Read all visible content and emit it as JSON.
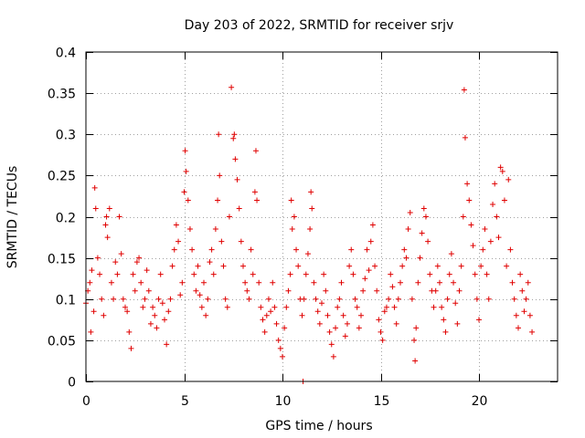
{
  "chart_data": {
    "type": "scatter",
    "title": "Day 203 of 2022, SRMTID for receiver srjv",
    "xlabel": "GPS time / hours",
    "ylabel": "SRMTID / TECUs",
    "xlim": [
      0,
      24
    ],
    "ylim": [
      0,
      0.4
    ],
    "x_ticks": [
      0,
      5,
      10,
      15,
      20
    ],
    "x_tick_labels": [
      "0",
      "5",
      "10",
      "15",
      "20"
    ],
    "y_ticks": [
      0,
      0.05,
      0.1,
      0.15,
      0.2,
      0.25,
      0.3,
      0.35,
      0.4
    ],
    "y_tick_labels": [
      "0",
      "0.05",
      "0.1",
      "0.15",
      "0.2",
      "0.25",
      "0.3",
      "0.35",
      "0.4"
    ],
    "grid": true,
    "marker": "+",
    "color": "#e00000",
    "series": [
      {
        "name": "srjv",
        "points": [
          [
            0.0,
            0.095
          ],
          [
            0.1,
            0.11
          ],
          [
            0.2,
            0.12
          ],
          [
            0.25,
            0.06
          ],
          [
            0.3,
            0.135
          ],
          [
            0.4,
            0.085
          ],
          [
            0.45,
            0.235
          ],
          [
            0.5,
            0.21
          ],
          [
            0.6,
            0.15
          ],
          [
            0.7,
            0.13
          ],
          [
            0.8,
            0.1
          ],
          [
            0.9,
            0.08
          ],
          [
            1.0,
            0.19
          ],
          [
            1.05,
            0.2
          ],
          [
            1.1,
            0.175
          ],
          [
            1.2,
            0.21
          ],
          [
            1.3,
            0.12
          ],
          [
            1.4,
            0.1
          ],
          [
            1.5,
            0.145
          ],
          [
            1.6,
            0.13
          ],
          [
            1.7,
            0.2
          ],
          [
            1.8,
            0.155
          ],
          [
            1.9,
            0.1
          ],
          [
            2.0,
            0.09
          ],
          [
            2.1,
            0.085
          ],
          [
            2.2,
            0.06
          ],
          [
            2.3,
            0.04
          ],
          [
            2.4,
            0.13
          ],
          [
            2.5,
            0.11
          ],
          [
            2.6,
            0.145
          ],
          [
            2.7,
            0.15
          ],
          [
            2.8,
            0.12
          ],
          [
            2.9,
            0.09
          ],
          [
            3.0,
            0.1
          ],
          [
            3.1,
            0.135
          ],
          [
            3.2,
            0.11
          ],
          [
            3.3,
            0.07
          ],
          [
            3.4,
            0.09
          ],
          [
            3.5,
            0.08
          ],
          [
            3.6,
            0.065
          ],
          [
            3.7,
            0.1
          ],
          [
            3.8,
            0.13
          ],
          [
            3.9,
            0.095
          ],
          [
            4.0,
            0.075
          ],
          [
            4.1,
            0.045
          ],
          [
            4.2,
            0.085
          ],
          [
            4.3,
            0.1
          ],
          [
            4.4,
            0.14
          ],
          [
            4.5,
            0.16
          ],
          [
            4.6,
            0.19
          ],
          [
            4.7,
            0.17
          ],
          [
            4.8,
            0.105
          ],
          [
            4.9,
            0.12
          ],
          [
            5.0,
            0.23
          ],
          [
            5.05,
            0.28
          ],
          [
            5.1,
            0.255
          ],
          [
            5.2,
            0.22
          ],
          [
            5.3,
            0.185
          ],
          [
            5.4,
            0.16
          ],
          [
            5.5,
            0.13
          ],
          [
            5.6,
            0.11
          ],
          [
            5.7,
            0.14
          ],
          [
            5.8,
            0.105
          ],
          [
            5.9,
            0.09
          ],
          [
            6.0,
            0.12
          ],
          [
            6.1,
            0.08
          ],
          [
            6.2,
            0.1
          ],
          [
            6.3,
            0.145
          ],
          [
            6.4,
            0.16
          ],
          [
            6.5,
            0.13
          ],
          [
            6.6,
            0.185
          ],
          [
            6.7,
            0.22
          ],
          [
            6.75,
            0.3
          ],
          [
            6.8,
            0.25
          ],
          [
            6.9,
            0.17
          ],
          [
            7.0,
            0.14
          ],
          [
            7.1,
            0.1
          ],
          [
            7.2,
            0.09
          ],
          [
            7.3,
            0.2
          ],
          [
            7.4,
            0.357
          ],
          [
            7.5,
            0.295
          ],
          [
            7.55,
            0.3
          ],
          [
            7.6,
            0.27
          ],
          [
            7.7,
            0.245
          ],
          [
            7.8,
            0.21
          ],
          [
            7.9,
            0.17
          ],
          [
            8.0,
            0.14
          ],
          [
            8.1,
            0.12
          ],
          [
            8.2,
            0.11
          ],
          [
            8.3,
            0.1
          ],
          [
            8.4,
            0.16
          ],
          [
            8.5,
            0.13
          ],
          [
            8.6,
            0.23
          ],
          [
            8.65,
            0.28
          ],
          [
            8.7,
            0.22
          ],
          [
            8.8,
            0.12
          ],
          [
            8.9,
            0.09
          ],
          [
            9.0,
            0.075
          ],
          [
            9.1,
            0.06
          ],
          [
            9.2,
            0.08
          ],
          [
            9.3,
            0.1
          ],
          [
            9.4,
            0.085
          ],
          [
            9.5,
            0.12
          ],
          [
            9.6,
            0.09
          ],
          [
            9.7,
            0.07
          ],
          [
            9.8,
            0.05
          ],
          [
            9.9,
            0.04
          ],
          [
            10.0,
            0.03
          ],
          [
            10.1,
            0.065
          ],
          [
            10.2,
            0.09
          ],
          [
            10.3,
            0.11
          ],
          [
            10.4,
            0.13
          ],
          [
            10.45,
            0.22
          ],
          [
            10.5,
            0.185
          ],
          [
            10.6,
            0.2
          ],
          [
            10.7,
            0.16
          ],
          [
            10.8,
            0.14
          ],
          [
            10.9,
            0.1
          ],
          [
            11.0,
            0.08
          ],
          [
            11.05,
            0.0
          ],
          [
            11.1,
            0.1
          ],
          [
            11.2,
            0.13
          ],
          [
            11.3,
            0.155
          ],
          [
            11.4,
            0.185
          ],
          [
            11.45,
            0.23
          ],
          [
            11.5,
            0.21
          ],
          [
            11.6,
            0.12
          ],
          [
            11.7,
            0.1
          ],
          [
            11.8,
            0.085
          ],
          [
            11.9,
            0.07
          ],
          [
            12.0,
            0.095
          ],
          [
            12.1,
            0.13
          ],
          [
            12.2,
            0.11
          ],
          [
            12.3,
            0.08
          ],
          [
            12.4,
            0.06
          ],
          [
            12.5,
            0.045
          ],
          [
            12.6,
            0.03
          ],
          [
            12.7,
            0.065
          ],
          [
            12.8,
            0.09
          ],
          [
            12.9,
            0.1
          ],
          [
            13.0,
            0.12
          ],
          [
            13.1,
            0.08
          ],
          [
            13.2,
            0.055
          ],
          [
            13.3,
            0.07
          ],
          [
            13.4,
            0.14
          ],
          [
            13.5,
            0.16
          ],
          [
            13.6,
            0.13
          ],
          [
            13.7,
            0.1
          ],
          [
            13.8,
            0.09
          ],
          [
            13.9,
            0.065
          ],
          [
            14.0,
            0.08
          ],
          [
            14.1,
            0.11
          ],
          [
            14.2,
            0.125
          ],
          [
            14.3,
            0.16
          ],
          [
            14.4,
            0.135
          ],
          [
            14.5,
            0.17
          ],
          [
            14.6,
            0.19
          ],
          [
            14.7,
            0.14
          ],
          [
            14.8,
            0.11
          ],
          [
            14.9,
            0.075
          ],
          [
            15.0,
            0.06
          ],
          [
            15.1,
            0.05
          ],
          [
            15.2,
            0.085
          ],
          [
            15.3,
            0.09
          ],
          [
            15.4,
            0.1
          ],
          [
            15.5,
            0.13
          ],
          [
            15.6,
            0.115
          ],
          [
            15.7,
            0.09
          ],
          [
            15.8,
            0.07
          ],
          [
            15.9,
            0.1
          ],
          [
            16.0,
            0.12
          ],
          [
            16.1,
            0.14
          ],
          [
            16.2,
            0.16
          ],
          [
            16.3,
            0.15
          ],
          [
            16.4,
            0.185
          ],
          [
            16.5,
            0.205
          ],
          [
            16.6,
            0.1
          ],
          [
            16.7,
            0.05
          ],
          [
            16.75,
            0.025
          ],
          [
            16.8,
            0.065
          ],
          [
            16.9,
            0.12
          ],
          [
            17.0,
            0.15
          ],
          [
            17.1,
            0.18
          ],
          [
            17.2,
            0.21
          ],
          [
            17.3,
            0.2
          ],
          [
            17.4,
            0.17
          ],
          [
            17.5,
            0.13
          ],
          [
            17.6,
            0.11
          ],
          [
            17.7,
            0.09
          ],
          [
            17.8,
            0.11
          ],
          [
            17.9,
            0.14
          ],
          [
            18.0,
            0.12
          ],
          [
            18.1,
            0.09
          ],
          [
            18.2,
            0.075
          ],
          [
            18.3,
            0.06
          ],
          [
            18.4,
            0.1
          ],
          [
            18.5,
            0.13
          ],
          [
            18.6,
            0.155
          ],
          [
            18.7,
            0.12
          ],
          [
            18.8,
            0.095
          ],
          [
            18.9,
            0.07
          ],
          [
            19.0,
            0.11
          ],
          [
            19.1,
            0.14
          ],
          [
            19.2,
            0.2
          ],
          [
            19.25,
            0.354
          ],
          [
            19.3,
            0.296
          ],
          [
            19.4,
            0.24
          ],
          [
            19.5,
            0.22
          ],
          [
            19.6,
            0.19
          ],
          [
            19.7,
            0.165
          ],
          [
            19.8,
            0.13
          ],
          [
            19.9,
            0.1
          ],
          [
            20.0,
            0.075
          ],
          [
            20.1,
            0.14
          ],
          [
            20.2,
            0.16
          ],
          [
            20.3,
            0.185
          ],
          [
            20.4,
            0.13
          ],
          [
            20.5,
            0.1
          ],
          [
            20.6,
            0.17
          ],
          [
            20.7,
            0.215
          ],
          [
            20.8,
            0.24
          ],
          [
            20.9,
            0.2
          ],
          [
            21.0,
            0.175
          ],
          [
            21.1,
            0.26
          ],
          [
            21.2,
            0.255
          ],
          [
            21.3,
            0.22
          ],
          [
            21.4,
            0.14
          ],
          [
            21.5,
            0.245
          ],
          [
            21.6,
            0.16
          ],
          [
            21.7,
            0.12
          ],
          [
            21.8,
            0.1
          ],
          [
            21.9,
            0.08
          ],
          [
            22.0,
            0.065
          ],
          [
            22.1,
            0.13
          ],
          [
            22.2,
            0.11
          ],
          [
            22.3,
            0.085
          ],
          [
            22.4,
            0.1
          ],
          [
            22.5,
            0.12
          ],
          [
            22.6,
            0.08
          ],
          [
            22.7,
            0.06
          ]
        ]
      }
    ]
  }
}
